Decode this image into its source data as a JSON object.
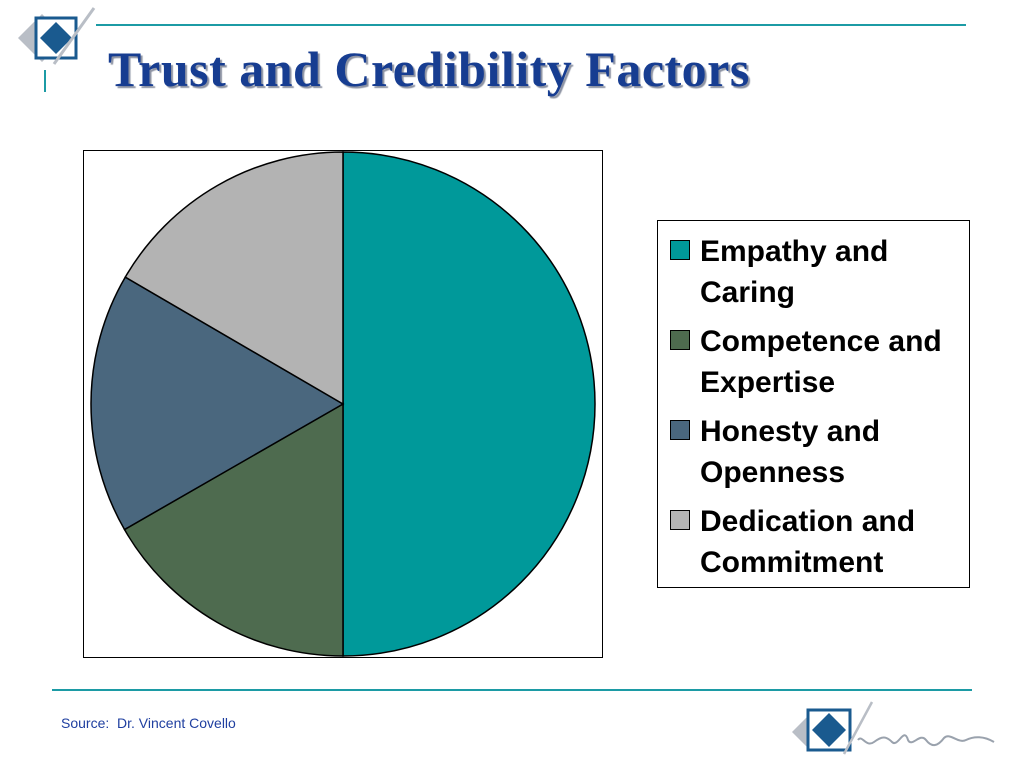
{
  "slide": {
    "title": "Trust and Credibility Factors",
    "source": "Source:  Dr. Vincent Covello"
  },
  "colors": {
    "accent_rule": "#1c9ba5",
    "title": "#173d91",
    "logo_blue": "#1a5a8f"
  },
  "icons": {
    "logo_top": "diamond-logo-icon",
    "logo_bottom": "diamond-logo-with-signature-icon"
  },
  "chart_data": {
    "type": "pie",
    "categories": [
      "Empathy and Caring",
      "Competence and Expertise",
      "Honesty and Openness",
      "Dedication and Commitment"
    ],
    "values": [
      50,
      16.7,
      16.7,
      16.6
    ],
    "colors": [
      "#00999a",
      "#4e6b4f",
      "#4a677e",
      "#b3b3b3"
    ],
    "legend_placement": "right",
    "start": "top",
    "direction": "clockwise"
  }
}
